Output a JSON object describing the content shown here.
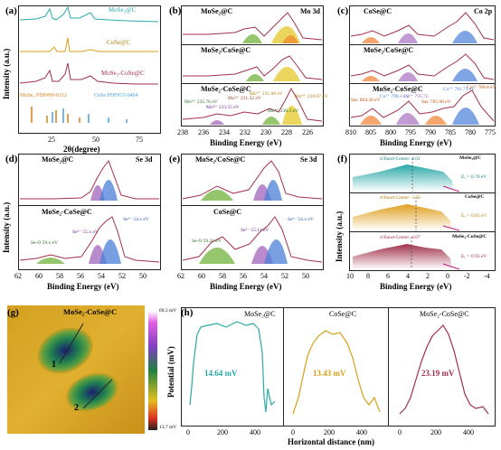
{
  "colors": {
    "teal": "#2aa8a8",
    "gold": "#d4a017",
    "maroon": "#a0304a",
    "fit_green": "#7ab648",
    "fit_purple": "#9b59b6",
    "fit_blue": "#4a7fd8",
    "fit_orange": "#f08030",
    "fit_yellow": "#e8d24a",
    "bg_line": "#d04080"
  },
  "a": {
    "label": "(a)",
    "ylabel": "Intensity (a.u.)",
    "xlabel": "2θ(degree)",
    "legend": [
      "MoSe₂@C",
      "CoSe@C",
      "MoSe₂-CoSe@C"
    ],
    "ref1": "MoSe₂ PDF#09-0312",
    "ref2": "CoSe PDF#15-0464",
    "xticks": [
      "25",
      "50",
      "75"
    ]
  },
  "b": {
    "label": "(b)",
    "tag": "Mo 3d",
    "t1": "MoSe₂@C",
    "t2": "MoSe₂/CoSe@C",
    "t3": "MoSe₂-CoSe@C",
    "xticks": [
      "238",
      "236",
      "234",
      "232",
      "230",
      "228",
      "226"
    ],
    "xlabel": "Binding Energy (eV)",
    "peaks": [
      "Mo⁶⁺ 235.76 eV",
      "Mo⁶⁺ 233.55 eV",
      "Mo⁵⁺ 231.32 eV",
      "Mo⁴⁺ 231.08 eV",
      "Mo⁴⁺ 230.3 eV",
      "Mo⁴⁺ 228.07 eV"
    ]
  },
  "c": {
    "label": "(c)",
    "tag": "Co 2p",
    "t1": "CoSe@C",
    "t2": "MoSe₂/CoSe@C",
    "t3": "MoSe₂-CoSe@C",
    "xticks": [
      "810",
      "805",
      "800",
      "795",
      "790",
      "785",
      "780",
      "775"
    ],
    "xlabel": "Binding Energy (eV)",
    "peaks": [
      "Sat. 804.36 eV",
      "Co²⁺ 798.1 eV",
      "Co³⁺ 795.72",
      "Sat. 785.96 eV",
      "Co³⁺ 781.71 eV",
      "Co²⁺ 780.8 eV"
    ]
  },
  "d": {
    "label": "(d)",
    "tag": "Se 3d",
    "t1": "MoSe₂@C",
    "t2": "MoSe₂-CoSe@C",
    "ylabel": "Intensity (a.u.)",
    "xticks": [
      "62",
      "60",
      "58",
      "56",
      "54",
      "52",
      "50"
    ],
    "xlabel": "Binding Energy (eV)",
    "peaks": [
      "Se-O 59.x eV",
      "Se²⁻ 55.x eV",
      "Se²⁻ 54.x eV"
    ]
  },
  "e": {
    "label": "(e)",
    "tag": "Se 3d",
    "t1": "MoSe₂/CoSe@C",
    "t2": "CoSe@C",
    "xticks": [
      "62",
      "60",
      "58",
      "56",
      "54",
      "52",
      "50"
    ],
    "xlabel": "Binding Energy (eV)",
    "peaks": [
      "Se-O 59.31 eV",
      "Se²⁻ 55.11 eV",
      "Se²⁻ 54.x eV"
    ]
  },
  "f": {
    "label": "(f)",
    "ylabel": "Intensity (a.u.)",
    "xlabel": "Binding Energy (eV)",
    "xticks": [
      "10",
      "8",
      "6",
      "4",
      "2",
      "0",
      "-2",
      "-4"
    ],
    "rows": [
      {
        "name": "MoSe₂@C",
        "center": "d Band-Center: 4.01",
        "ev": "Eᵥ = 0.76 eV"
      },
      {
        "name": "CoSe@C",
        "center": "d Band-Center: 3.58",
        "ev": "Eᵥ = 0.83 eV"
      },
      {
        "name": "MoSe₂-CoSe@C",
        "center": "d Band-Center: 4.07",
        "ev": "Eᵥ = 0.93 eV"
      }
    ]
  },
  "g": {
    "label": "(g)",
    "title": "MoSe₂-CoSe@C",
    "top": "69.3 mV",
    "bottom": "13.7 mV",
    "ylabel": "Potential (mV)",
    "m1": "1",
    "m2": "2"
  },
  "h": {
    "label": "(h)",
    "t1": "MoSe₂@C",
    "t2": "CoSe@C",
    "t3": "MoSe₂-CoSe@C",
    "v1": "14.64 mV",
    "v2": "13.43 mV",
    "v3": "23.19 mV",
    "xticks": [
      "0",
      "200",
      "400"
    ],
    "xlabel": "Horizontal distance (nm)"
  }
}
